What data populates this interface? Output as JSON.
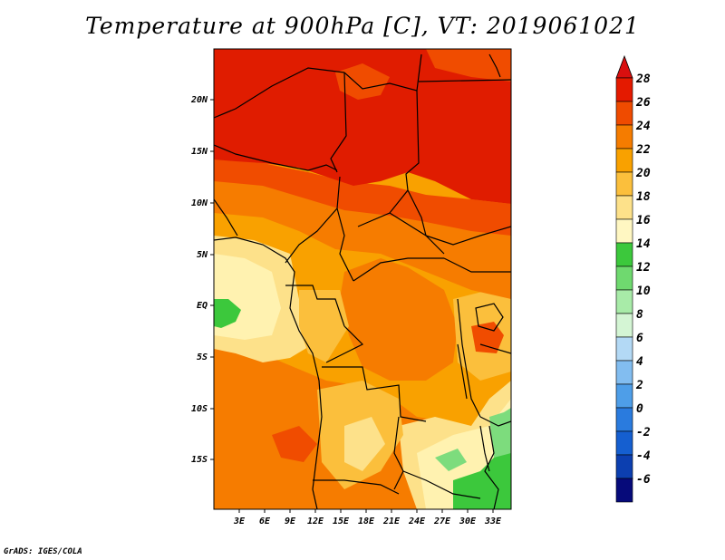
{
  "title": "Temperature at 900hPa [C], VT: 2019061021",
  "footer": "GrADS: IGES/COLA",
  "lat_ticks": [
    "20N",
    "15N",
    "10N",
    "5N",
    "EQ",
    "5S",
    "10S",
    "15S"
  ],
  "lon_ticks": [
    "3E",
    "6E",
    "9E",
    "12E",
    "15E",
    "18E",
    "21E",
    "24E",
    "27E",
    "30E",
    "33E"
  ],
  "colorbar": {
    "labels": [
      "28",
      "26",
      "24",
      "22",
      "20",
      "18",
      "16",
      "14",
      "12",
      "10",
      "8",
      "6",
      "4",
      "2",
      "0",
      "-2",
      "-4",
      "-6"
    ],
    "colors": [
      "#e41a00",
      "#ef4b00",
      "#f57c00",
      "#f9a100",
      "#fbbf3c",
      "#fde18a",
      "#fff7c2",
      "#3cc83c",
      "#6fd96f",
      "#a8eba8",
      "#d4f5d4",
      "#b3d9f5",
      "#82bdf0",
      "#4e9ee8",
      "#2a7bde",
      "#155fd0",
      "#0c3fb0",
      "#060a7a"
    ],
    "top_arrow_color": "#d90f0f",
    "bottom_arrow_color": "#d8d8f8"
  },
  "colors": {
    "hot": "#e01c00",
    "warm": "#f04c00",
    "orange": "#f67c00",
    "amber": "#f9a100",
    "light_orange": "#fbbf3c",
    "pale": "#fde18a",
    "cream": "#fff2b0",
    "green": "#3cc83c",
    "light_green": "#7ddc7d"
  }
}
